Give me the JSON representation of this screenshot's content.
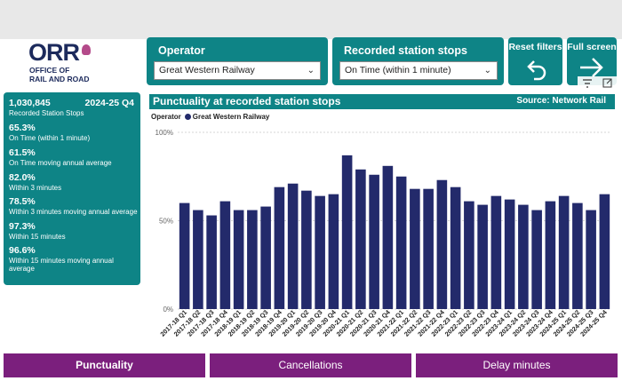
{
  "logo": {
    "mark": "ORR",
    "line1": "OFFICE OF",
    "line2": "RAIL AND ROAD"
  },
  "operator_filter": {
    "label": "Operator",
    "value": "Great Western Railway"
  },
  "stops_filter": {
    "label": "Recorded station stops",
    "value": "On Time (within 1 minute)"
  },
  "buttons": {
    "reset": "Reset filters",
    "fullscreen": "Full screen"
  },
  "icons": {
    "reset": "undo-arrow-icon",
    "fullscreen": "arrow-right-icon",
    "filter": "filter-icon",
    "expand": "expand-icon"
  },
  "kpis": {
    "period": "2024-25 Q4",
    "items": [
      {
        "value": "1,030,845",
        "label": "Recorded Station Stops"
      },
      {
        "value": "65.3%",
        "label": "On Time (within 1 minute)"
      },
      {
        "value": "61.5%",
        "label": "On Time moving annual average"
      },
      {
        "value": "82.0%",
        "label": "Within 3 minutes"
      },
      {
        "value": "78.5%",
        "label": "Within 3 minutes moving annual average"
      },
      {
        "value": "97.3%",
        "label": "Within 15 minutes"
      },
      {
        "value": "96.6%",
        "label": "Within 15 minutes moving annual average"
      }
    ]
  },
  "chart_header": {
    "title": "Punctuality at recorded station stops",
    "source": "Source: Network Rail"
  },
  "legend": {
    "label": "Operator",
    "series": "Great Western Railway"
  },
  "colors": {
    "teal": "#0e8486",
    "bar": "#232a6b",
    "purple": "#7b1f7d",
    "navy": "#1c2a5c"
  },
  "chart_data": {
    "type": "bar",
    "categories": [
      "2017-18 Q1",
      "2017-18 Q2",
      "2017-18 Q3",
      "2017-18 Q4",
      "2018-19 Q1",
      "2018-19 Q2",
      "2018-19 Q3",
      "2018-19 Q4",
      "2019-20 Q1",
      "2019-20 Q2",
      "2019-20 Q3",
      "2019-20 Q4",
      "2020-21 Q1",
      "2020-21 Q2",
      "2020-21 Q3",
      "2020-21 Q4",
      "2021-22 Q1",
      "2021-22 Q2",
      "2021-22 Q3",
      "2021-22 Q4",
      "2022-23 Q1",
      "2022-23 Q2",
      "2022-23 Q3",
      "2022-23 Q4",
      "2023-24 Q1",
      "2023-24 Q2",
      "2023-24 Q3",
      "2023-24 Q4",
      "2024-25 Q1",
      "2024-25 Q2",
      "2024-25 Q3",
      "2024-25 Q4"
    ],
    "series": [
      {
        "name": "Great Western Railway",
        "values": [
          60,
          56,
          53,
          61,
          56,
          56,
          58,
          69,
          71,
          67,
          64,
          65,
          87,
          79,
          76,
          81,
          75,
          68,
          68,
          73,
          69,
          61,
          59,
          64,
          62,
          59,
          56,
          61,
          64,
          60,
          56,
          65
        ]
      }
    ],
    "yticks": [
      "0%",
      "50%",
      "100%"
    ],
    "ylim": [
      0,
      100
    ]
  },
  "nav": {
    "tab1": "Punctuality",
    "tab2": "Cancellations",
    "tab3": "Delay minutes"
  }
}
